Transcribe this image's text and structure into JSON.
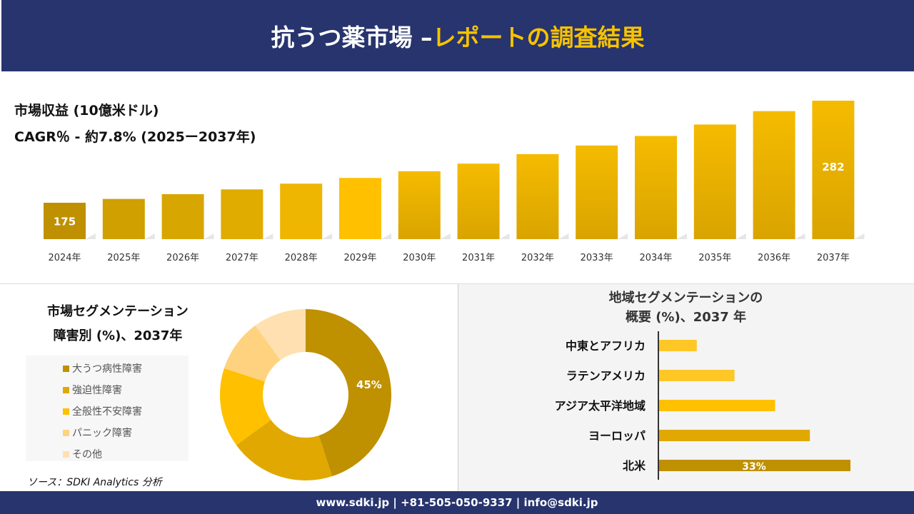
{
  "header": {
    "title_main": "抗うつ薬市場 –",
    "title_accent": "レポートの調査結果"
  },
  "colors": {
    "navy": "#27346e",
    "accent": "#f7c200"
  },
  "chart_data": [
    {
      "type": "bar",
      "title": "市場収益 (10億米ドル)",
      "subtitle": "CAGR％ - 約7.8% (2025ー2037年)",
      "categories": [
        "2024年",
        "2025年",
        "2026年",
        "2027年",
        "2028年",
        "2029年",
        "2030年",
        "2031年",
        "2032年",
        "2033年",
        "2034年",
        "2035年",
        "2036年",
        "2037年"
      ],
      "values": [
        175,
        179,
        184,
        189,
        195,
        201,
        208,
        216,
        226,
        235,
        245,
        257,
        271,
        282
      ],
      "data_labels": {
        "0": "175",
        "13": "282"
      },
      "colors": [
        "#bf9000",
        "#cfa000",
        "#d8a600",
        "#e0ac00",
        "#eeb600",
        "#ffc000",
        "#f5bb00",
        "#f5bb00",
        "#f5bb00",
        "#f5bb00",
        "#f5bb00",
        "#f5bb00",
        "#f5bb00",
        "#f5bb00"
      ]
    },
    {
      "type": "pie",
      "title_line1": "市場セグメンテーション",
      "title_line2": "障害別 (%)、2037年",
      "labels": [
        "大うつ病性障害",
        "強迫性障害",
        "全般性不安障害",
        "パニック障害",
        "その他"
      ],
      "values": [
        45,
        20,
        15,
        10,
        10
      ],
      "data_labels": {
        "0": "45%"
      },
      "colors": [
        "#bf9000",
        "#e0a800",
        "#ffc000",
        "#ffd27f",
        "#ffe0b0"
      ]
    },
    {
      "type": "bar",
      "orientation": "horizontal",
      "title_line1": "地域セグメンテーションの",
      "title_line2": "概要 (%)、2037 年",
      "categories": [
        "中東とアフリカ",
        "ラテンアメリカ",
        "アジア太平洋地域",
        "ヨーロッパ",
        "北米"
      ],
      "values": [
        6.5,
        13,
        20,
        26,
        33
      ],
      "data_labels": {
        "4": "33%"
      },
      "colors": [
        "#ffc726",
        "#ffc726",
        "#ffc000",
        "#e0a800",
        "#bf9000"
      ]
    }
  ],
  "source": "ソース：SDKI Analytics 分析",
  "footer": "www.sdki.jp | +81-505-050-9337 | info@sdki.jp"
}
